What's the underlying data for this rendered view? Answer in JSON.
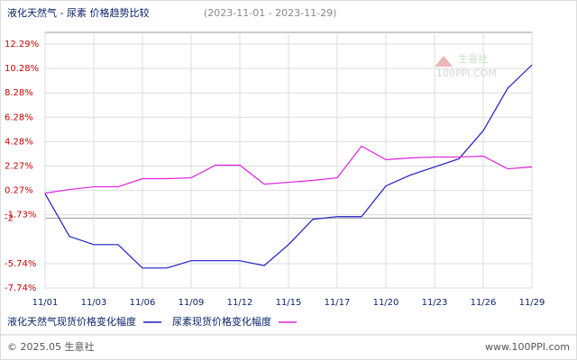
{
  "chart_data": {
    "type": "line",
    "title": "液化天然气 - 尿素 价格趋势比较",
    "subtitle": "(2023-11-01 - 2023-11-29)",
    "watermark": "生意社",
    "watermark_url": "100PPI.COM",
    "footer_left": "© 2025.05 生意社",
    "footer_right": "www.100PPI.com",
    "categories": [
      "11/01",
      null,
      "11/03",
      null,
      "11/06",
      null,
      "11/09",
      null,
      "11/12",
      null,
      "11/15",
      null,
      "11/17",
      null,
      "11/20",
      null,
      "11/23",
      null,
      "11/26",
      null,
      "11/29"
    ],
    "series": [
      {
        "name": "液化天然气现货价格变化幅度",
        "color": "#1c1cc8",
        "values": [
          0,
          -3.5,
          -4.18,
          -4.18,
          -6.1,
          -6.1,
          -5.5,
          -5.5,
          -5.5,
          -5.9,
          -4.18,
          -2.1,
          -1.88,
          -1.88,
          0.64,
          1.53,
          2.2,
          2.87,
          5.17,
          8.65,
          10.58
        ]
      },
      {
        "name": "尿素现货价格变化幅度",
        "color": "#e020e0",
        "values": [
          0.05,
          0.35,
          0.57,
          0.57,
          1.24,
          1.24,
          1.31,
          2.35,
          2.35,
          0.79,
          0.94,
          1.09,
          1.31,
          3.91,
          2.8,
          2.94,
          3.02,
          3.02,
          3.09,
          2.05,
          2.2
        ]
      }
    ],
    "ylim": [
      -7.74,
      13.25
    ],
    "yticks": [
      {
        "value": 12.29,
        "label": "12.29%"
      },
      {
        "value": 10.28,
        "label": "10.28%"
      },
      {
        "value": 8.28,
        "label": "8.28%"
      },
      {
        "value": 6.28,
        "label": "6.28%"
      },
      {
        "value": 4.28,
        "label": "4.28%"
      },
      {
        "value": 2.27,
        "label": "2.27%"
      },
      {
        "value": 0.27,
        "label": "0.27%"
      },
      {
        "value": -1.73,
        "label": "-1.73%"
      },
      -2,
      {
        "value": -5.74,
        "label": "-5.74%"
      },
      {
        "value": -7.74,
        "label": "-7.74%"
      }
    ],
    "grid": true,
    "legend": "bottom"
  }
}
